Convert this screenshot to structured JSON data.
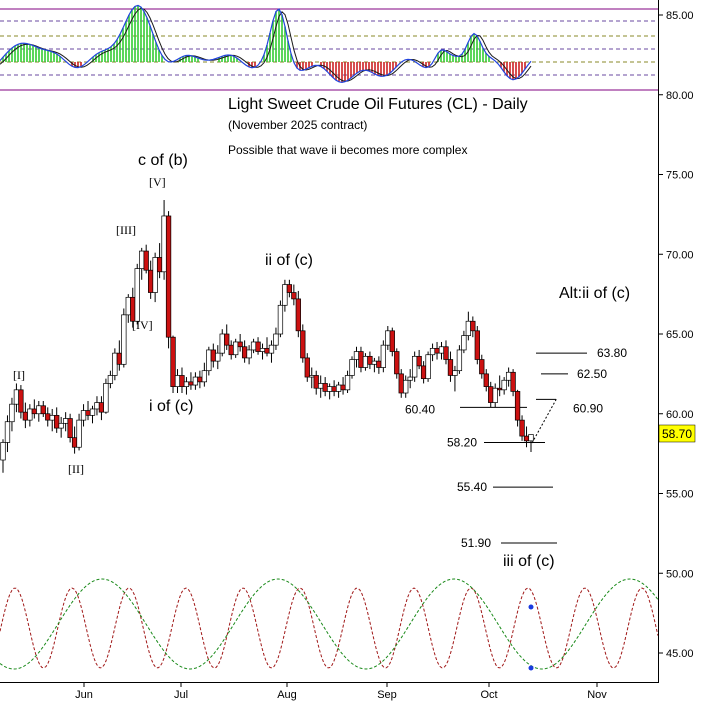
{
  "chart_data": {
    "type": "candlestick",
    "title": "Light Sweet Crude Oil Futures (CL) - Daily",
    "subtitle": "(November 2025 contract)",
    "note": "Possible that wave ii becomes more complex",
    "y_axis": {
      "ylim": [
        43.6,
        87.0
      ],
      "ticks": [
        "85.00",
        "80.00",
        "75.00",
        "70.00",
        "65.00",
        "60.00",
        "55.00",
        "50.00",
        "45.00"
      ]
    },
    "x_axis": {
      "ticks": [
        "Jun",
        "Jul",
        "Aug",
        "Sep",
        "Oct",
        "Nov"
      ]
    },
    "last_price": "58.70",
    "last_price_color": "#ffff00",
    "up_color": "#ffffff",
    "down_color": "#cc1111",
    "candles": [
      {
        "o": 57.1,
        "h": 58.4,
        "l": 56.3,
        "c": 58.2
      },
      {
        "o": 58.2,
        "h": 59.9,
        "l": 57.6,
        "c": 59.5
      },
      {
        "o": 59.5,
        "h": 61.0,
        "l": 58.9,
        "c": 60.6
      },
      {
        "o": 60.6,
        "h": 61.9,
        "l": 60.1,
        "c": 61.5
      },
      {
        "o": 61.5,
        "h": 61.8,
        "l": 59.7,
        "c": 60.1
      },
      {
        "o": 60.1,
        "h": 60.7,
        "l": 59.1,
        "c": 59.6
      },
      {
        "o": 59.6,
        "h": 60.6,
        "l": 59.2,
        "c": 60.3
      },
      {
        "o": 60.3,
        "h": 60.9,
        "l": 59.7,
        "c": 60.0
      },
      {
        "o": 60.0,
        "h": 60.8,
        "l": 59.5,
        "c": 60.5
      },
      {
        "o": 60.5,
        "h": 60.8,
        "l": 59.8,
        "c": 60.0
      },
      {
        "o": 60.0,
        "h": 60.4,
        "l": 59.2,
        "c": 59.6
      },
      {
        "o": 59.6,
        "h": 60.3,
        "l": 58.9,
        "c": 59.9
      },
      {
        "o": 59.9,
        "h": 60.4,
        "l": 58.8,
        "c": 59.1
      },
      {
        "o": 59.1,
        "h": 59.8,
        "l": 58.5,
        "c": 59.4
      },
      {
        "o": 59.4,
        "h": 60.1,
        "l": 58.9,
        "c": 59.7
      },
      {
        "o": 59.7,
        "h": 60.0,
        "l": 58.2,
        "c": 58.5
      },
      {
        "o": 58.5,
        "h": 59.2,
        "l": 57.5,
        "c": 57.9
      },
      {
        "o": 57.9,
        "h": 60.0,
        "l": 57.7,
        "c": 59.6
      },
      {
        "o": 59.6,
        "h": 60.6,
        "l": 59.2,
        "c": 60.2
      },
      {
        "o": 60.2,
        "h": 60.8,
        "l": 59.6,
        "c": 59.9
      },
      {
        "o": 59.9,
        "h": 60.5,
        "l": 59.4,
        "c": 60.3
      },
      {
        "o": 60.3,
        "h": 61.1,
        "l": 59.9,
        "c": 60.7
      },
      {
        "o": 60.7,
        "h": 61.1,
        "l": 59.6,
        "c": 60.1
      },
      {
        "o": 60.1,
        "h": 62.2,
        "l": 60.0,
        "c": 61.9
      },
      {
        "o": 61.9,
        "h": 62.7,
        "l": 61.6,
        "c": 62.4
      },
      {
        "o": 62.4,
        "h": 64.1,
        "l": 62.1,
        "c": 63.8
      },
      {
        "o": 63.8,
        "h": 64.6,
        "l": 62.7,
        "c": 63.1
      },
      {
        "o": 63.1,
        "h": 66.6,
        "l": 62.9,
        "c": 66.2
      },
      {
        "o": 66.2,
        "h": 67.5,
        "l": 65.7,
        "c": 67.3
      },
      {
        "o": 67.3,
        "h": 67.9,
        "l": 65.4,
        "c": 65.8
      },
      {
        "o": 65.8,
        "h": 69.4,
        "l": 65.6,
        "c": 69.1
      },
      {
        "o": 69.1,
        "h": 70.4,
        "l": 68.4,
        "c": 70.2
      },
      {
        "o": 70.2,
        "h": 70.6,
        "l": 68.8,
        "c": 69.0
      },
      {
        "o": 69.0,
        "h": 69.6,
        "l": 67.2,
        "c": 67.6
      },
      {
        "o": 67.6,
        "h": 70.1,
        "l": 67.0,
        "c": 69.8
      },
      {
        "o": 69.8,
        "h": 70.7,
        "l": 68.5,
        "c": 68.9
      },
      {
        "o": 68.9,
        "h": 73.4,
        "l": 68.4,
        "c": 72.4
      },
      {
        "o": 72.4,
        "h": 72.7,
        "l": 64.1,
        "c": 64.8
      },
      {
        "o": 64.8,
        "h": 64.9,
        "l": 61.3,
        "c": 61.7
      },
      {
        "o": 61.7,
        "h": 62.8,
        "l": 61.3,
        "c": 62.4
      },
      {
        "o": 62.4,
        "h": 62.9,
        "l": 61.3,
        "c": 61.7
      },
      {
        "o": 61.7,
        "h": 62.3,
        "l": 61.2,
        "c": 62.0
      },
      {
        "o": 62.0,
        "h": 62.6,
        "l": 61.5,
        "c": 61.8
      },
      {
        "o": 61.8,
        "h": 62.6,
        "l": 61.5,
        "c": 62.3
      },
      {
        "o": 62.3,
        "h": 62.7,
        "l": 61.6,
        "c": 62.0
      },
      {
        "o": 62.0,
        "h": 63.2,
        "l": 61.7,
        "c": 62.7
      },
      {
        "o": 62.7,
        "h": 64.2,
        "l": 62.4,
        "c": 64.0
      },
      {
        "o": 64.0,
        "h": 64.4,
        "l": 62.9,
        "c": 63.3
      },
      {
        "o": 63.3,
        "h": 64.3,
        "l": 62.8,
        "c": 63.8
      },
      {
        "o": 63.8,
        "h": 65.3,
        "l": 63.6,
        "c": 65.0
      },
      {
        "o": 65.0,
        "h": 65.6,
        "l": 64.0,
        "c": 64.3
      },
      {
        "o": 64.3,
        "h": 64.6,
        "l": 63.4,
        "c": 63.7
      },
      {
        "o": 63.7,
        "h": 64.7,
        "l": 63.5,
        "c": 64.5
      },
      {
        "o": 64.5,
        "h": 65.0,
        "l": 63.9,
        "c": 64.2
      },
      {
        "o": 64.2,
        "h": 64.6,
        "l": 63.2,
        "c": 63.5
      },
      {
        "o": 63.5,
        "h": 64.3,
        "l": 63.1,
        "c": 64.0
      },
      {
        "o": 64.0,
        "h": 64.7,
        "l": 63.8,
        "c": 64.5
      },
      {
        "o": 64.5,
        "h": 64.8,
        "l": 63.7,
        "c": 63.9
      },
      {
        "o": 63.9,
        "h": 64.4,
        "l": 63.4,
        "c": 64.1
      },
      {
        "o": 64.1,
        "h": 64.8,
        "l": 63.6,
        "c": 63.8
      },
      {
        "o": 63.8,
        "h": 64.6,
        "l": 63.2,
        "c": 64.3
      },
      {
        "o": 64.3,
        "h": 65.4,
        "l": 64.0,
        "c": 65.0
      },
      {
        "o": 65.0,
        "h": 67.1,
        "l": 64.8,
        "c": 66.8
      },
      {
        "o": 66.8,
        "h": 68.4,
        "l": 66.4,
        "c": 68.1
      },
      {
        "o": 68.1,
        "h": 68.4,
        "l": 67.3,
        "c": 67.6
      },
      {
        "o": 67.6,
        "h": 68.1,
        "l": 66.8,
        "c": 67.2
      },
      {
        "o": 67.2,
        "h": 67.7,
        "l": 64.8,
        "c": 65.2
      },
      {
        "o": 65.2,
        "h": 65.6,
        "l": 63.2,
        "c": 63.5
      },
      {
        "o": 63.5,
        "h": 63.8,
        "l": 62.0,
        "c": 62.3
      },
      {
        "o": 62.3,
        "h": 62.9,
        "l": 61.6,
        "c": 62.4
      },
      {
        "o": 62.4,
        "h": 62.7,
        "l": 61.2,
        "c": 61.6
      },
      {
        "o": 61.6,
        "h": 62.4,
        "l": 61.0,
        "c": 61.9
      },
      {
        "o": 61.9,
        "h": 62.3,
        "l": 61.1,
        "c": 61.4
      },
      {
        "o": 61.4,
        "h": 61.9,
        "l": 60.9,
        "c": 61.7
      },
      {
        "o": 61.7,
        "h": 62.1,
        "l": 61.1,
        "c": 61.4
      },
      {
        "o": 61.4,
        "h": 62.0,
        "l": 61.0,
        "c": 61.8
      },
      {
        "o": 61.8,
        "h": 62.3,
        "l": 61.2,
        "c": 61.5
      },
      {
        "o": 61.5,
        "h": 62.7,
        "l": 61.3,
        "c": 62.4
      },
      {
        "o": 62.4,
        "h": 63.6,
        "l": 62.2,
        "c": 63.4
      },
      {
        "o": 63.4,
        "h": 64.2,
        "l": 62.9,
        "c": 63.9
      },
      {
        "o": 63.9,
        "h": 64.2,
        "l": 62.6,
        "c": 62.9
      },
      {
        "o": 62.9,
        "h": 63.8,
        "l": 62.7,
        "c": 63.6
      },
      {
        "o": 63.6,
        "h": 63.9,
        "l": 62.8,
        "c": 63.1
      },
      {
        "o": 63.1,
        "h": 63.5,
        "l": 62.6,
        "c": 63.3
      },
      {
        "o": 63.3,
        "h": 63.6,
        "l": 62.5,
        "c": 62.9
      },
      {
        "o": 62.9,
        "h": 64.6,
        "l": 62.6,
        "c": 64.3
      },
      {
        "o": 64.3,
        "h": 65.5,
        "l": 64.0,
        "c": 65.2
      },
      {
        "o": 65.2,
        "h": 65.4,
        "l": 63.6,
        "c": 63.9
      },
      {
        "o": 63.9,
        "h": 64.1,
        "l": 62.2,
        "c": 62.5
      },
      {
        "o": 62.5,
        "h": 62.8,
        "l": 61.0,
        "c": 61.3
      },
      {
        "o": 61.3,
        "h": 62.4,
        "l": 61.0,
        "c": 62.1
      },
      {
        "o": 62.1,
        "h": 62.8,
        "l": 61.6,
        "c": 62.3
      },
      {
        "o": 62.3,
        "h": 63.9,
        "l": 62.0,
        "c": 63.6
      },
      {
        "o": 63.6,
        "h": 64.0,
        "l": 62.8,
        "c": 63.0
      },
      {
        "o": 63.0,
        "h": 63.3,
        "l": 61.9,
        "c": 62.2
      },
      {
        "o": 62.2,
        "h": 63.9,
        "l": 62.0,
        "c": 63.7
      },
      {
        "o": 63.7,
        "h": 64.4,
        "l": 63.3,
        "c": 64.1
      },
      {
        "o": 64.1,
        "h": 64.5,
        "l": 63.4,
        "c": 63.8
      },
      {
        "o": 63.8,
        "h": 64.5,
        "l": 63.4,
        "c": 64.2
      },
      {
        "o": 64.2,
        "h": 64.6,
        "l": 63.1,
        "c": 63.4
      },
      {
        "o": 63.4,
        "h": 63.9,
        "l": 62.0,
        "c": 62.4
      },
      {
        "o": 62.4,
        "h": 63.0,
        "l": 61.4,
        "c": 62.7
      },
      {
        "o": 62.7,
        "h": 64.3,
        "l": 62.5,
        "c": 64.0
      },
      {
        "o": 64.0,
        "h": 65.2,
        "l": 63.8,
        "c": 64.9
      },
      {
        "o": 64.9,
        "h": 66.4,
        "l": 64.6,
        "c": 65.8
      },
      {
        "o": 65.8,
        "h": 66.1,
        "l": 64.8,
        "c": 65.2
      },
      {
        "o": 65.2,
        "h": 65.5,
        "l": 63.1,
        "c": 63.4
      },
      {
        "o": 63.4,
        "h": 63.7,
        "l": 62.2,
        "c": 62.5
      },
      {
        "o": 62.5,
        "h": 62.8,
        "l": 61.4,
        "c": 61.7
      },
      {
        "o": 61.7,
        "h": 62.0,
        "l": 60.4,
        "c": 60.7
      },
      {
        "o": 60.7,
        "h": 61.9,
        "l": 60.4,
        "c": 61.6
      },
      {
        "o": 61.6,
        "h": 62.4,
        "l": 61.1,
        "c": 61.5
      },
      {
        "o": 61.5,
        "h": 62.3,
        "l": 61.2,
        "c": 62.1
      },
      {
        "o": 62.1,
        "h": 62.9,
        "l": 61.7,
        "c": 62.6
      },
      {
        "o": 62.6,
        "h": 62.8,
        "l": 61.1,
        "c": 61.4
      },
      {
        "o": 61.4,
        "h": 61.5,
        "l": 59.2,
        "c": 59.6
      },
      {
        "o": 59.6,
        "h": 59.9,
        "l": 58.3,
        "c": 58.6
      },
      {
        "o": 58.6,
        "h": 59.2,
        "l": 57.9,
        "c": 58.3
      },
      {
        "o": 58.3,
        "h": 58.7,
        "l": 57.6,
        "c": 58.7
      }
    ],
    "levels": [
      {
        "label": "63.80",
        "value": 63.8,
        "x0": 536,
        "x1": 587
      },
      {
        "label": "62.50",
        "value": 62.5,
        "x0": 541,
        "x1": 568
      },
      {
        "label": "60.90",
        "value": 60.9,
        "x0": 536,
        "x1": 556
      },
      {
        "label": "60.40",
        "value": 60.4,
        "x0": 460,
        "x1": 527
      },
      {
        "label": "58.20",
        "value": 58.2,
        "x0": 484,
        "x1": 545
      },
      {
        "label": "55.40",
        "value": 55.4,
        "x0": 493,
        "x1": 553
      },
      {
        "label": "51.90",
        "value": 51.9,
        "x0": 501,
        "x1": 557
      }
    ],
    "wave_labels": [
      "c of (b)",
      "[V]",
      "[III]",
      "[IV]",
      "[I]",
      "[II]",
      "i of (c)",
      "ii of (c)",
      "Alt:ii of (c)",
      "iii of (c)"
    ]
  }
}
